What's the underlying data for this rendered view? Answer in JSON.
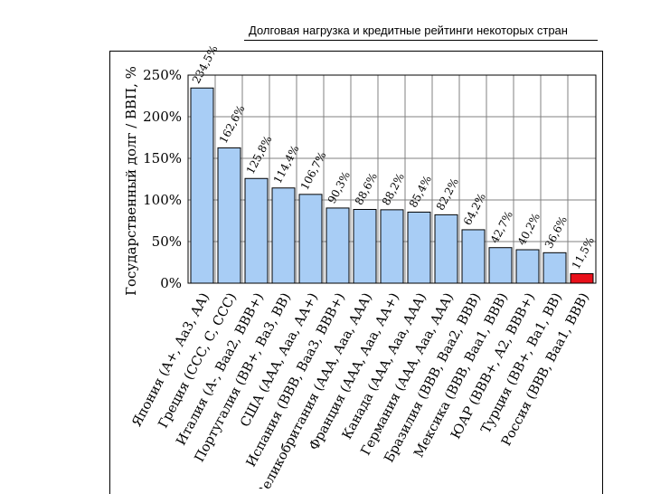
{
  "slide": {
    "title": "Долговая нагрузка и кредитные рейтинги некоторых стран"
  },
  "chart_data": {
    "type": "bar",
    "title": "",
    "xlabel": "",
    "ylabel": "Государственный долг / ВВП, %",
    "ylim": [
      0,
      250
    ],
    "yticks": [
      0,
      50,
      100,
      150,
      200,
      250
    ],
    "ytick_labels": [
      "0%",
      "50%",
      "100%",
      "150%",
      "200%",
      "250%"
    ],
    "grid": true,
    "categories": [
      "Япония (A+, Aa3, AA)",
      "Греция (CCC, C, CCC)",
      "Италия (A-, Baa2, BBB+)",
      "Португалия (BB+, Ba3, BB)",
      "США (AAA, Aaa, AA+)",
      "Испания (BBB, Baa3, BBB+)",
      "Великобритания (AAA, Aaa, AAA)",
      "Франция (AAA, Aaa, AA+)",
      "Канада (AAA, Aaa, AAA)",
      "Германия (AAA, Aaa, AAA)",
      "Бразилия (BBB, Baa2, BBB)",
      "Мексика (BBB, Baa1, BBB)",
      "ЮАР (BBB+, A2, BBB+)",
      "Турция (BB+, Ba1, BB)",
      "Россия (BBB, Baa1, BBB)"
    ],
    "values": [
      234.5,
      162.6,
      125.8,
      114.4,
      106.7,
      90.3,
      88.6,
      88.2,
      85.4,
      82.2,
      64.2,
      42.7,
      40.2,
      36.6,
      11.5
    ],
    "data_labels": [
      "234,5%",
      "162,6%",
      "125,8%",
      "114,4%",
      "106,7%",
      "90,3%",
      "88,6%",
      "88,2%",
      "85,4%",
      "82,2%",
      "64,2%",
      "42,7%",
      "40,2%",
      "36,6%",
      "11,5%"
    ],
    "colors": {
      "bar": "#a8cdf5",
      "highlight": "#e8101a",
      "highlight_index": 14,
      "grid": "#808080",
      "edge": "#000000"
    }
  }
}
